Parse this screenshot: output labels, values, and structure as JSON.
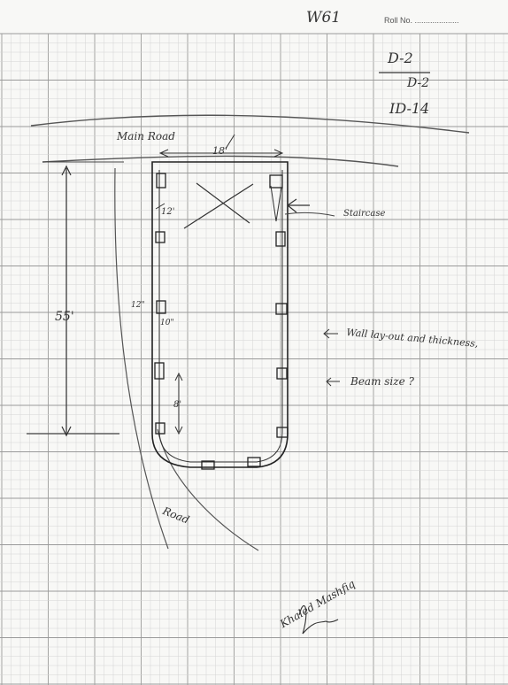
{
  "header": {
    "sheet_code": "W61",
    "roll_label": "Roll No. ...................."
  },
  "codes": {
    "line1": "D-2",
    "line2": "D-2",
    "line3": "ID-14"
  },
  "plan": {
    "main_road": "Main Road",
    "road": "Road",
    "width_dim": "18'",
    "length_dim": "55'",
    "dim_12a": "12'",
    "dim_12b": "12\"",
    "dim_10": "10\"",
    "dim_8": "8'",
    "staircase": "Staircase"
  },
  "notes": {
    "wall": "Wall lay-out and thickness,",
    "beam": "Beam size ?"
  },
  "signature": {
    "name": "Khaled Mashfiq"
  },
  "colors": {
    "paper": "#f8f8f6",
    "grid_minor": "#d4d4d4",
    "grid_major": "#9a9a9a",
    "ink": "#2a2a2a"
  }
}
